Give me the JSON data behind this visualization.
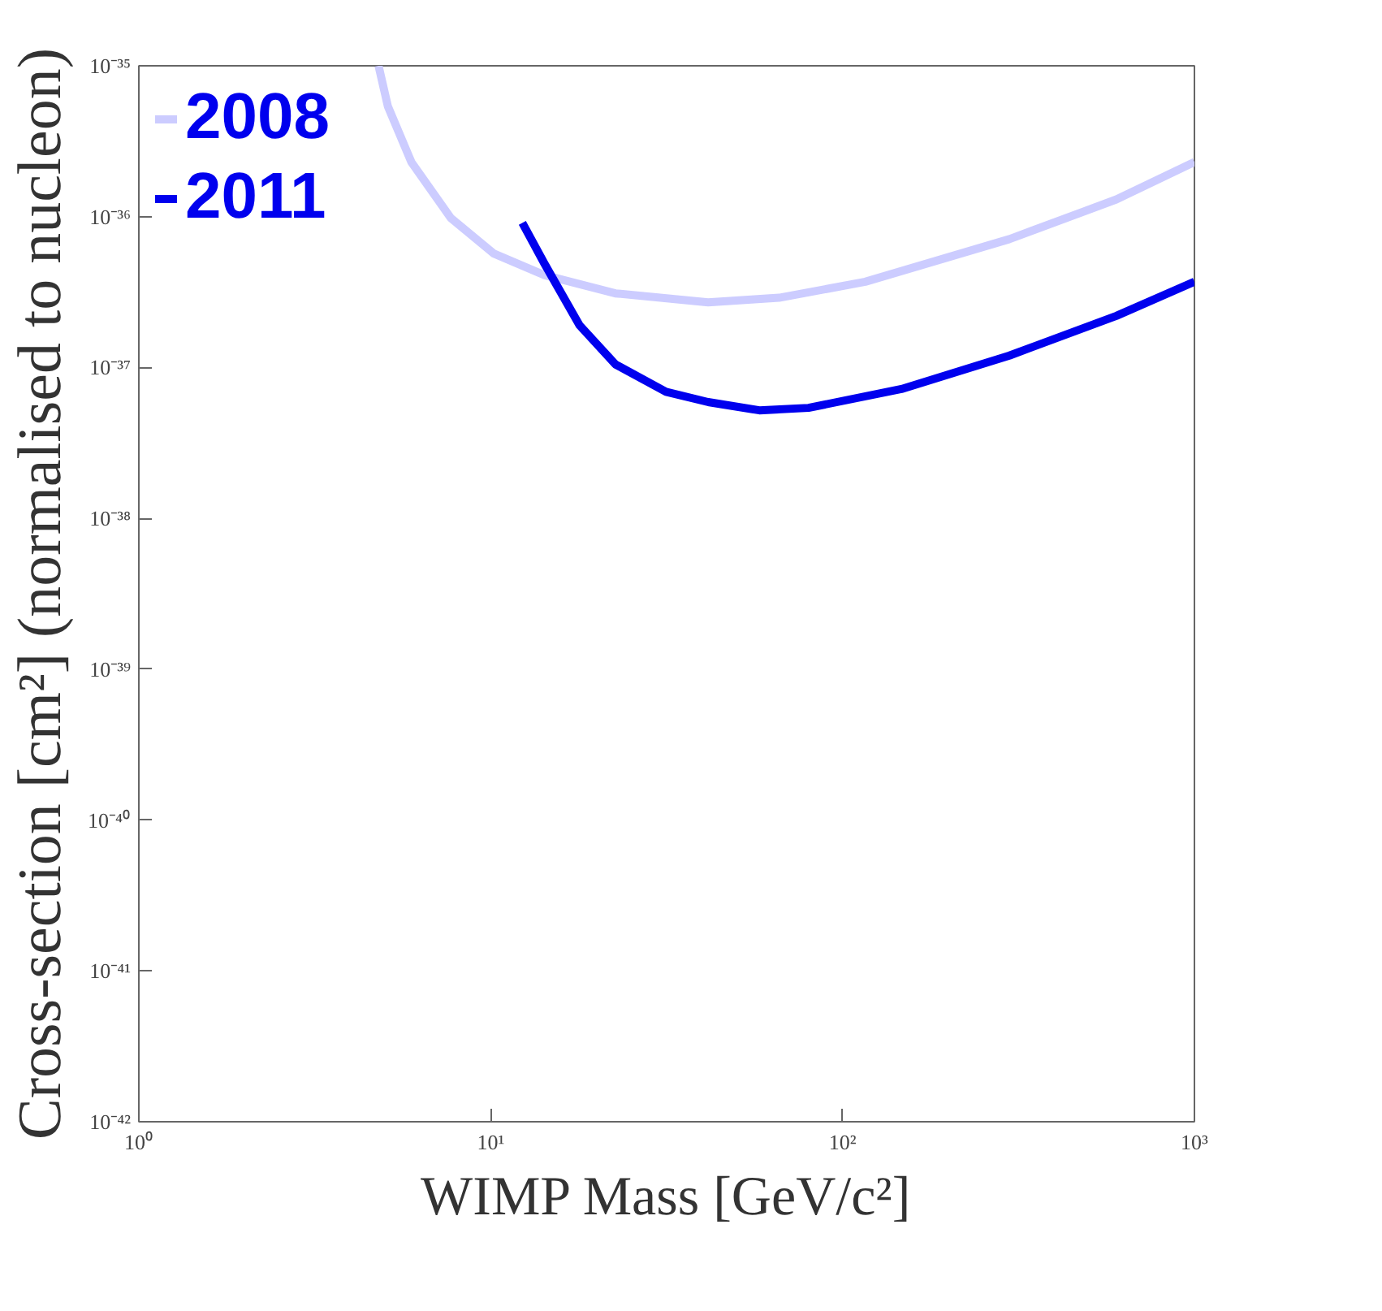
{
  "chart_data": {
    "type": "line",
    "xlabel": "WIMP Mass [GeV/c²]",
    "ylabel": "Cross-section [cm²] (normalised to nucleon)",
    "log": "xy",
    "xlim": [
      1,
      1000
    ],
    "ylim": [
      1e-42,
      1e-35
    ],
    "xticks": [
      {
        "value": 1,
        "label": "10⁰"
      },
      {
        "value": 10,
        "label": "10¹"
      },
      {
        "value": 100,
        "label": "10²"
      },
      {
        "value": 1000,
        "label": "10³"
      }
    ],
    "yticks": [
      {
        "value": 1e-42,
        "label": "10⁻⁴²"
      },
      {
        "value": 1e-41,
        "label": "10⁻⁴¹"
      },
      {
        "value": 1e-40,
        "label": "10⁻⁴⁰"
      },
      {
        "value": 1e-39,
        "label": "10⁻³⁹"
      },
      {
        "value": 1e-38,
        "label": "10⁻³⁸"
      },
      {
        "value": 1e-37,
        "label": "10⁻³⁷"
      },
      {
        "value": 1e-36,
        "label": "10⁻³⁶"
      },
      {
        "value": 1e-35,
        "label": "10⁻³⁵"
      }
    ],
    "legend": "top left",
    "grid": false,
    "marker": "none",
    "line_style": "solid",
    "series": [
      {
        "name": "2008",
        "color": "#ccccff",
        "x": [
          4.8,
          5.1,
          5.95,
          7.7,
          10.2,
          14.2,
          22.6,
          41.5,
          66,
          116,
          298,
          600,
          1000
        ],
        "values": [
          1e-35,
          5.4e-36,
          2.3e-36,
          9.8e-37,
          5.7e-37,
          4.1e-37,
          3.1e-37,
          2.7e-37,
          2.9e-37,
          3.7e-37,
          7.1e-37,
          1.3e-36,
          2.3e-36
        ]
      },
      {
        "name": "2011",
        "color": "#0000ee",
        "x": [
          12.3,
          14.2,
          17.9,
          22.6,
          31.5,
          41.5,
          58,
          80,
          147,
          298,
          600,
          1000
        ],
        "values": [
          9.1e-37,
          4.9e-37,
          1.9e-37,
          1.05e-37,
          6.9e-38,
          5.9e-38,
          5.2e-38,
          5.4e-38,
          7.2e-38,
          1.2e-37,
          2.2e-37,
          3.7e-37
        ]
      }
    ]
  }
}
